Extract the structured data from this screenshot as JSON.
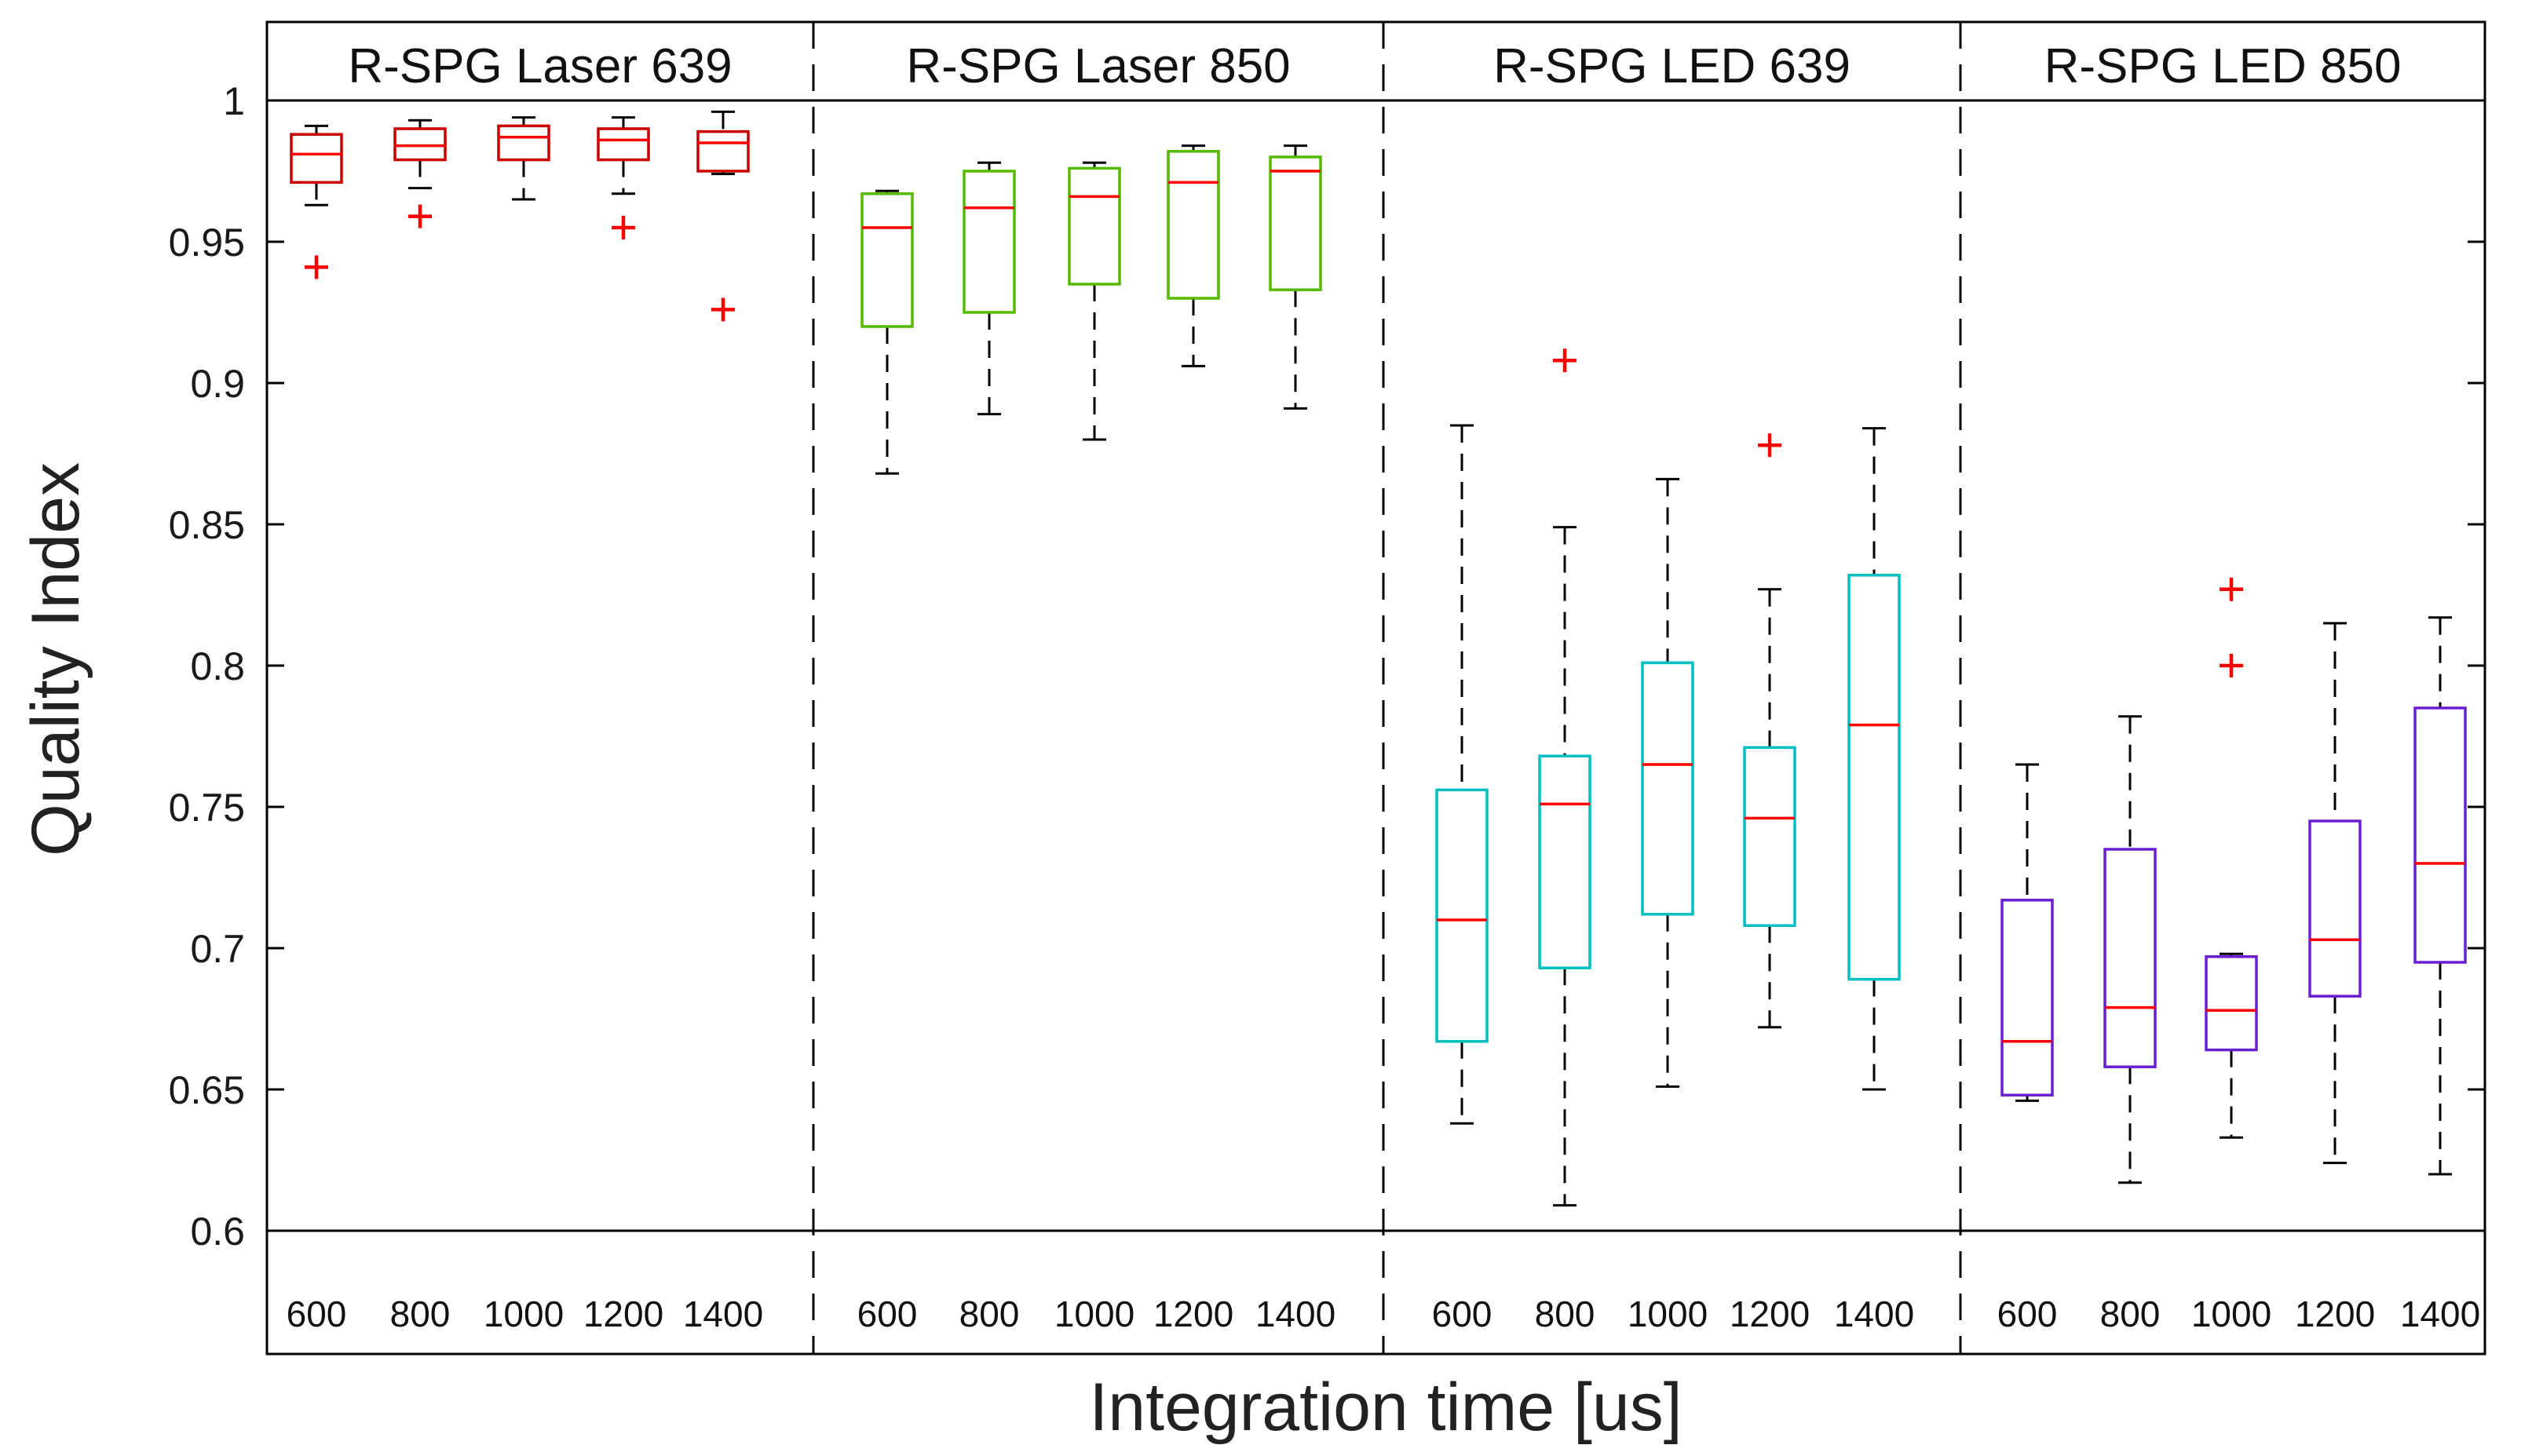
{
  "chart_data": {
    "type": "boxplot",
    "ylabel": "Quality Index",
    "xlabel": "Integration time [us]",
    "ylim": [
      0.6,
      1.0
    ],
    "yticks": [
      "0.6",
      "0.65",
      "0.7",
      "0.75",
      "0.8",
      "0.85",
      "0.9",
      "0.95",
      "1"
    ],
    "yticks_values": [
      0.6,
      0.65,
      0.7,
      0.75,
      0.8,
      0.85,
      0.9,
      0.95,
      1.0
    ],
    "grid": false,
    "median_color": "#ff0000",
    "outlier_color": "#ff0000",
    "whisker_color": "#000000",
    "panels": [
      {
        "title": "R-SPG Laser 639",
        "color": "#cc0000",
        "categories": [
          "600",
          "800",
          "1000",
          "1200",
          "1400"
        ],
        "boxes": [
          {
            "min": 0.963,
            "q1": 0.971,
            "median": 0.981,
            "q3": 0.988,
            "max": 0.991,
            "outliers": [
              0.941
            ]
          },
          {
            "min": 0.969,
            "q1": 0.979,
            "median": 0.984,
            "q3": 0.99,
            "max": 0.993,
            "outliers": [
              0.959
            ]
          },
          {
            "min": 0.965,
            "q1": 0.979,
            "median": 0.987,
            "q3": 0.991,
            "max": 0.994,
            "outliers": []
          },
          {
            "min": 0.967,
            "q1": 0.979,
            "median": 0.986,
            "q3": 0.99,
            "max": 0.994,
            "outliers": [
              0.955
            ]
          },
          {
            "min": 0.974,
            "q1": 0.975,
            "median": 0.985,
            "q3": 0.989,
            "max": 0.996,
            "outliers": [
              0.926
            ]
          }
        ]
      },
      {
        "title": "R-SPG Laser 850",
        "color": "#55bb00",
        "categories": [
          "600",
          "800",
          "1000",
          "1200",
          "1400"
        ],
        "boxes": [
          {
            "min": 0.868,
            "q1": 0.92,
            "median": 0.955,
            "q3": 0.967,
            "max": 0.968,
            "outliers": []
          },
          {
            "min": 0.889,
            "q1": 0.925,
            "median": 0.962,
            "q3": 0.975,
            "max": 0.978,
            "outliers": []
          },
          {
            "min": 0.88,
            "q1": 0.935,
            "median": 0.966,
            "q3": 0.976,
            "max": 0.978,
            "outliers": []
          },
          {
            "min": 0.906,
            "q1": 0.93,
            "median": 0.971,
            "q3": 0.982,
            "max": 0.984,
            "outliers": []
          },
          {
            "min": 0.891,
            "q1": 0.933,
            "median": 0.975,
            "q3": 0.98,
            "max": 0.984,
            "outliers": []
          }
        ]
      },
      {
        "title": "R-SPG LED 639",
        "color": "#00bfc4",
        "categories": [
          "600",
          "800",
          "1000",
          "1200",
          "1400"
        ],
        "boxes": [
          {
            "min": 0.638,
            "q1": 0.667,
            "median": 0.71,
            "q3": 0.756,
            "max": 0.885,
            "outliers": []
          },
          {
            "min": 0.609,
            "q1": 0.693,
            "median": 0.751,
            "q3": 0.768,
            "max": 0.849,
            "outliers": [
              0.908
            ]
          },
          {
            "min": 0.651,
            "q1": 0.712,
            "median": 0.765,
            "q3": 0.801,
            "max": 0.866,
            "outliers": []
          },
          {
            "min": 0.672,
            "q1": 0.708,
            "median": 0.746,
            "q3": 0.771,
            "max": 0.827,
            "outliers": [
              0.878
            ]
          },
          {
            "min": 0.65,
            "q1": 0.689,
            "median": 0.779,
            "q3": 0.832,
            "max": 0.884,
            "outliers": []
          }
        ]
      },
      {
        "title": "R-SPG LED 850",
        "color": "#6a1ed2",
        "categories": [
          "600",
          "800",
          "1000",
          "1200",
          "1400"
        ],
        "boxes": [
          {
            "min": 0.646,
            "q1": 0.648,
            "median": 0.667,
            "q3": 0.717,
            "max": 0.765,
            "outliers": []
          },
          {
            "min": 0.617,
            "q1": 0.658,
            "median": 0.679,
            "q3": 0.735,
            "max": 0.782,
            "outliers": []
          },
          {
            "min": 0.633,
            "q1": 0.664,
            "median": 0.678,
            "q3": 0.697,
            "max": 0.698,
            "outliers": [
              0.8,
              0.827
            ]
          },
          {
            "min": 0.624,
            "q1": 0.683,
            "median": 0.703,
            "q3": 0.745,
            "max": 0.815,
            "outliers": []
          },
          {
            "min": 0.62,
            "q1": 0.695,
            "median": 0.73,
            "q3": 0.785,
            "max": 0.817,
            "outliers": []
          }
        ]
      }
    ]
  }
}
